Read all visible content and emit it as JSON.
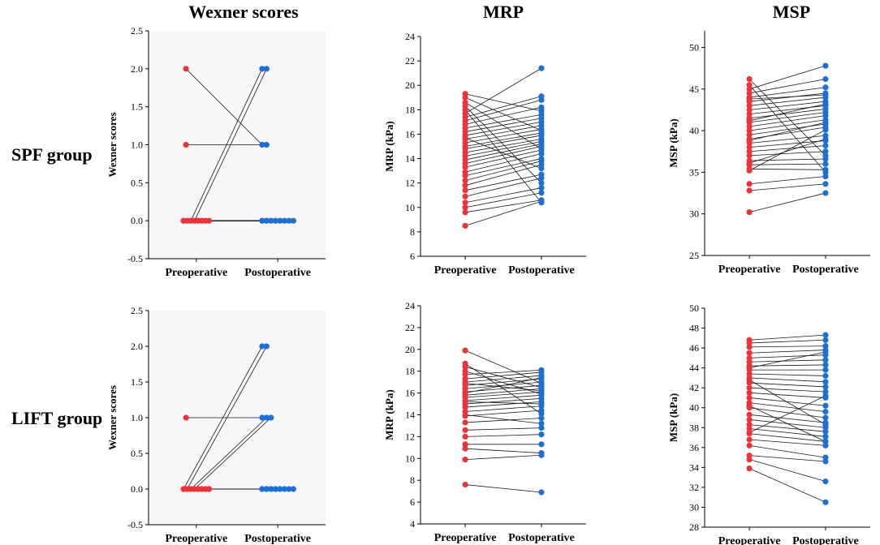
{
  "column_titles": [
    "Wexner scores",
    "MRP",
    "MSP"
  ],
  "row_labels": [
    "SPF group",
    "LIFT group"
  ],
  "colors": {
    "pre": "#e8353a",
    "post": "#1f6fd1",
    "line": "#1a1a1a",
    "axis": "#000000"
  },
  "chart_data": [
    {
      "type": "scatter",
      "title": "Wexner scores - SPF group",
      "xlabel": "",
      "ylabel": "Wexner scores",
      "categories": [
        "Preoperative",
        "Postoperative"
      ],
      "ylim": [
        -0.5,
        2.5
      ],
      "yticks": [
        -0.5,
        0.0,
        0.5,
        1.0,
        1.5,
        2.0,
        2.5
      ],
      "tick_format": "1",
      "pre": [
        2,
        1,
        0,
        0,
        0,
        0,
        0,
        0,
        0,
        0,
        0,
        0,
        0,
        0,
        0,
        0
      ],
      "post": [
        1,
        1,
        0,
        0,
        2,
        2,
        0,
        0,
        0,
        0,
        0,
        0,
        0,
        0,
        0,
        0
      ]
    },
    {
      "type": "scatter",
      "title": "MRP - SPF group",
      "xlabel": "",
      "ylabel": "MRP (kPa)",
      "categories": [
        "Preoperative",
        "Postoperative"
      ],
      "ylim": [
        6,
        24
      ],
      "yticks": [
        6,
        8,
        10,
        12,
        14,
        16,
        18,
        20,
        22,
        24
      ],
      "tick_format": "0",
      "pre": [
        8.5,
        9.6,
        10.0,
        10.4,
        10.9,
        11.4,
        11.8,
        12.2,
        12.6,
        12.9,
        13.3,
        13.6,
        13.9,
        14.2,
        14.5,
        14.8,
        15.0,
        15.3,
        15.6,
        15.9,
        16.2,
        16.5,
        16.8,
        17.1,
        17.4,
        17.7,
        18.0,
        18.3,
        18.6,
        19.0,
        19.3,
        15.7
      ],
      "post": [
        10.5,
        10.6,
        11.2,
        11.6,
        12.4,
        12.7,
        13.5,
        13.8,
        14.0,
        14.4,
        14.7,
        15.0,
        15.2,
        15.4,
        15.6,
        15.9,
        16.1,
        16.4,
        16.7,
        17.0,
        17.3,
        17.6,
        18.2,
        18.8,
        19.1,
        21.4,
        10.4,
        12.0,
        14.8,
        16.3,
        17.9,
        13.2
      ]
    },
    {
      "type": "scatter",
      "title": "MSP - SPF group",
      "xlabel": "",
      "ylabel": "MSP (kPa)",
      "categories": [
        "Preoperative",
        "Postoperative"
      ],
      "ylim": [
        25,
        52
      ],
      "yticks": [
        25,
        30,
        35,
        40,
        45,
        50
      ],
      "tick_format": "0",
      "pre": [
        30.2,
        32.8,
        33.6,
        35.4,
        35.9,
        36.4,
        37.0,
        37.5,
        38.0,
        38.5,
        39.0,
        39.5,
        40.0,
        40.5,
        41.0,
        41.5,
        42.0,
        42.5,
        43.0,
        43.5,
        44.0,
        44.5,
        45.0,
        45.5,
        46.2,
        36.1,
        38.8,
        41.2,
        43.8,
        35.2
      ],
      "post": [
        32.5,
        33.6,
        34.5,
        35.3,
        36.0,
        36.6,
        37.5,
        38.2,
        38.8,
        39.4,
        40.4,
        40.8,
        41.3,
        41.8,
        42.2,
        42.6,
        43.0,
        43.5,
        44.0,
        44.5,
        45.2,
        46.2,
        47.8,
        35.0,
        37.0,
        39.0,
        41.0,
        43.2,
        44.3,
        40.1
      ]
    },
    {
      "type": "scatter",
      "title": "Wexner scores - LIFT group",
      "xlabel": "",
      "ylabel": "Wexner scores",
      "categories": [
        "Preoperative",
        "Postoperative"
      ],
      "ylim": [
        -0.5,
        2.5
      ],
      "yticks": [
        -0.5,
        0.0,
        0.5,
        1.0,
        1.5,
        2.0,
        2.5
      ],
      "tick_format": "1",
      "pre": [
        1,
        0,
        0,
        0,
        0,
        0,
        0,
        0,
        0,
        0,
        0,
        0,
        0,
        0,
        0,
        0,
        0
      ],
      "post": [
        1,
        2,
        2,
        1,
        1,
        0,
        0,
        0,
        0,
        0,
        0,
        0,
        0,
        0,
        0,
        0,
        0
      ]
    },
    {
      "type": "scatter",
      "title": "MRP - LIFT group",
      "xlabel": "",
      "ylabel": "MRP (kPa)",
      "categories": [
        "Preoperative",
        "Postoperative"
      ],
      "ylim": [
        4,
        24
      ],
      "yticks": [
        4,
        6,
        8,
        10,
        12,
        14,
        16,
        18,
        20,
        22,
        24
      ],
      "tick_format": "0",
      "pre": [
        7.6,
        9.9,
        10.9,
        11.3,
        12.0,
        12.6,
        13.3,
        13.9,
        14.3,
        14.7,
        15.0,
        15.3,
        15.6,
        15.8,
        16.1,
        16.4,
        16.7,
        17.0,
        17.3,
        17.7,
        18.0,
        18.4,
        18.7,
        19.9,
        15.2,
        16.0,
        16.9,
        14.0
      ],
      "post": [
        6.9,
        10.3,
        10.5,
        11.3,
        12.2,
        12.8,
        13.7,
        14.4,
        14.8,
        15.2,
        15.5,
        15.8,
        16.1,
        16.4,
        16.7,
        17.0,
        17.3,
        17.6,
        17.9,
        18.1,
        15.9,
        16.5,
        14.1,
        16.9,
        15.0,
        17.4,
        16.2,
        13.2
      ]
    },
    {
      "type": "scatter",
      "title": "MSP - LIFT group",
      "xlabel": "",
      "ylabel": "MSP (kPa)",
      "categories": [
        "Preoperative",
        "Postoperative"
      ],
      "ylim": [
        28,
        50
      ],
      "yticks": [
        28,
        30,
        32,
        34,
        36,
        38,
        40,
        42,
        44,
        46,
        48,
        50
      ],
      "tick_format": "0",
      "pre": [
        33.9,
        34.8,
        35.2,
        36.2,
        36.8,
        37.4,
        37.9,
        38.3,
        38.8,
        39.3,
        40.0,
        40.5,
        41.0,
        41.5,
        42.0,
        42.5,
        43.0,
        43.4,
        43.8,
        44.2,
        44.6,
        45.0,
        45.5,
        46.1,
        46.5,
        46.8,
        40.2,
        42.8,
        37.5,
        44.0
      ],
      "post": [
        30.5,
        32.6,
        34.6,
        35.0,
        36.2,
        36.6,
        37.1,
        37.6,
        38.0,
        38.5,
        39.0,
        39.6,
        40.2,
        41.0,
        41.6,
        42.1,
        42.6,
        43.2,
        43.8,
        44.3,
        44.8,
        45.3,
        45.8,
        46.2,
        46.8,
        47.3,
        36.6,
        38.3,
        41.2,
        45.6
      ]
    }
  ]
}
